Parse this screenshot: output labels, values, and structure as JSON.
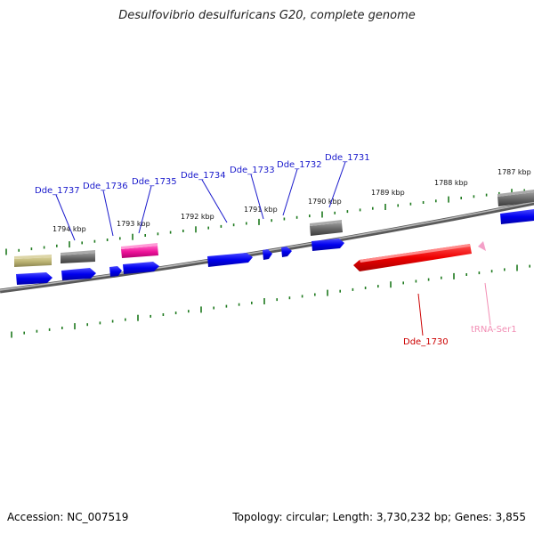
{
  "title": "Desulfovibrio desulfuricans G20, complete genome",
  "footer": {
    "accession": "Accession: NC_007519",
    "summary": "Topology: circular; Length: 3,730,232 bp; Genes: 3,855"
  },
  "scale_labels": [
    "1794 kbp",
    "1793 kbp",
    "1792 kbp",
    "1791 kbp",
    "1790 kbp",
    "1789 kbp",
    "1788 kbp",
    "1787 kbp"
  ],
  "genes": [
    {
      "name": "Dde_1737",
      "color": "blue"
    },
    {
      "name": "Dde_1736",
      "color": "blue"
    },
    {
      "name": "Dde_1735",
      "color": "blue"
    },
    {
      "name": "Dde_1734",
      "color": "blue"
    },
    {
      "name": "Dde_1733",
      "color": "blue"
    },
    {
      "name": "Dde_1732",
      "color": "blue"
    },
    {
      "name": "Dde_1731",
      "color": "blue"
    },
    {
      "name": "Dde_1730",
      "color": "red"
    },
    {
      "name": "tRNA-Ser1",
      "color": "pink"
    }
  ],
  "colors": {
    "cds": "#0000ee",
    "cds_grey": "#666666",
    "cds_olive": "#b8b070",
    "cds_magenta": "#ee1199",
    "rrna_red": "#ee0000",
    "trna_pink": "#f4a0c8",
    "tick_green": "#1f7a1f",
    "backbone": "#808080"
  }
}
